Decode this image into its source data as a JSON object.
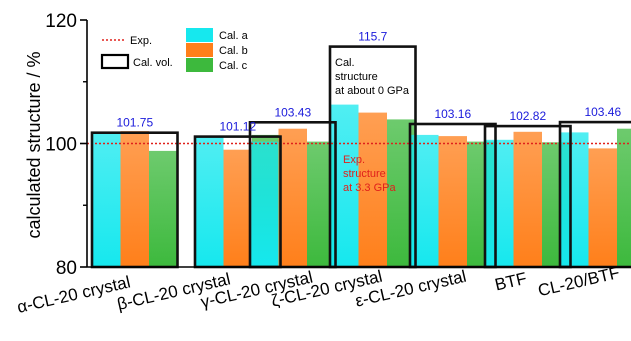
{
  "chart_data": {
    "type": "bar",
    "ylabel": "calculated structure / %",
    "ylim": [
      80,
      120
    ],
    "y_ticks": [
      "80",
      "100",
      "120"
    ],
    "reference_line": {
      "value": 100,
      "legend_label": "Exp.",
      "color": "#e0201b"
    },
    "categories": [
      "α-CL-20 crystal",
      "β-CL-20 crystal",
      "γ-CL-20 crystal",
      "ζ-CL-20 crystal",
      "ε-CL-20 crystal",
      "BTF",
      "CL-20/BTF"
    ],
    "volume_labels": [
      "101.75",
      "101.12",
      "103.43",
      "115.7",
      "103.16",
      "102.82",
      "103.46"
    ],
    "series": [
      {
        "name": "Cal. a",
        "values": [
          101.8,
          101.0,
          100.3,
          106.3,
          101.4,
          100.6,
          101.8
        ],
        "color": "#16e8ee"
      },
      {
        "name": "Cal. b",
        "values": [
          102.0,
          99.0,
          102.4,
          105.0,
          101.2,
          101.9,
          99.2
        ],
        "color": "#ff7f1a"
      },
      {
        "name": "Cal. c",
        "values": [
          98.8,
          101.4,
          100.3,
          103.9,
          100.3,
          100.2,
          102.4
        ],
        "color": "#3db93d"
      }
    ],
    "volume_series": {
      "name": "Cal. vol.",
      "values": [
        101.75,
        101.12,
        103.43,
        115.7,
        103.16,
        102.82,
        103.46
      ]
    },
    "annotations": {
      "upper": [
        "Cal.",
        "structure",
        "at about 0 GPa"
      ],
      "lower": [
        "Exp.",
        "structure",
        "at 3.3 GPa"
      ]
    },
    "colors": {
      "label_blue": "#1a1adb",
      "annotation_red": "#e0201b",
      "box": "#111111"
    }
  }
}
